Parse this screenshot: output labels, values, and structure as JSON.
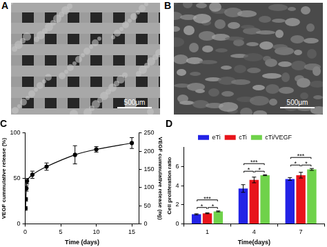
{
  "images": [
    {
      "label": "A",
      "scale_bar": "500μm"
    },
    {
      "label": "B",
      "scale_bar": "500μm"
    }
  ],
  "chart_data": [
    {
      "type": "line",
      "title": "C",
      "x": [
        0.04,
        0.08,
        0.17,
        0.25,
        1,
        3,
        7,
        10,
        15
      ],
      "values": [
        17,
        27,
        39,
        47,
        54,
        63,
        76,
        82,
        89
      ],
      "errors": [
        2,
        2,
        3,
        3,
        4,
        4,
        10,
        3,
        6
      ],
      "color": "#000000",
      "marker": "circle",
      "x_label": "Time (days)",
      "y_label": "VEGF cummulative release (%)",
      "y2_label": "VEGF cummulative release (ng)",
      "xlim": [
        0,
        16
      ],
      "xticks": [
        0,
        5,
        10,
        15
      ],
      "ylim": [
        0,
        100
      ],
      "yticks": [
        0,
        50,
        100
      ],
      "y2lim": [
        0,
        250
      ],
      "y2ticks": [
        0,
        50,
        100,
        150,
        200,
        250
      ],
      "grid": false
    },
    {
      "type": "bar",
      "title": "D",
      "categories": [
        "1",
        "4",
        "7"
      ],
      "series": [
        {
          "name": "eTi",
          "color": "#2323e6",
          "values": [
            1.0,
            3.7,
            4.7
          ],
          "errors": [
            0.05,
            0.4,
            0.15
          ]
        },
        {
          "name": "cTi",
          "color": "#e8141b",
          "values": [
            1.1,
            4.6,
            5.1
          ],
          "errors": [
            0.05,
            0.3,
            0.3
          ]
        },
        {
          "name": "cTi/VEGF",
          "color": "#6fd24a",
          "values": [
            1.3,
            5.1,
            5.7
          ],
          "errors": [
            0.05,
            0.05,
            0.1
          ]
        }
      ],
      "x_label": "Time(days)",
      "y_label": "Cell proliferation ratio",
      "ylim": [
        0,
        8
      ],
      "yticks": [
        0,
        2,
        4,
        6
      ],
      "legend": "top",
      "grid": false,
      "annotations": [
        {
          "category": "1",
          "from": "eTi",
          "to": "cTi",
          "label": "*"
        },
        {
          "category": "1",
          "from": "cTi",
          "to": "cTi/VEGF",
          "label": "*"
        },
        {
          "category": "1",
          "from": "eTi",
          "to": "cTi/VEGF",
          "label": "***"
        },
        {
          "category": "4",
          "from": "eTi",
          "to": "cTi",
          "label": "*"
        },
        {
          "category": "4",
          "from": "cTi",
          "to": "cTi/VEGF",
          "label": "*"
        },
        {
          "category": "4",
          "from": "eTi",
          "to": "cTi/VEGF",
          "label": "***"
        },
        {
          "category": "7",
          "from": "eTi",
          "to": "cTi",
          "label": "*"
        },
        {
          "category": "7",
          "from": "cTi",
          "to": "cTi/VEGF",
          "label": "*"
        },
        {
          "category": "7",
          "from": "eTi",
          "to": "cTi/VEGF",
          "label": "***"
        }
      ]
    }
  ]
}
